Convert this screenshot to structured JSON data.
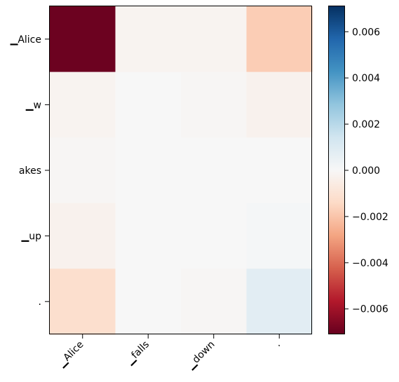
{
  "chart_data": {
    "type": "heatmap",
    "x_tick_labels": [
      "▁Alice",
      "▁falls",
      "▁down",
      "."
    ],
    "y_tick_labels": [
      "▁Alice",
      "▁w",
      "akes",
      "▁up",
      "."
    ],
    "values": [
      [
        -0.007,
        -0.0002,
        -0.0002,
        -0.0018
      ],
      [
        -0.0002,
        0.0,
        -0.0001,
        -0.0003
      ],
      [
        -0.0001,
        0.0,
        0.0,
        0.0
      ],
      [
        -0.0003,
        0.0,
        0.0,
        0.0001
      ],
      [
        -0.0012,
        0.0,
        -0.0001,
        0.0008
      ]
    ],
    "colormap": "RdBu",
    "vmin": -0.0071,
    "vmax": 0.0071,
    "colorbar_ticks": [
      0.006,
      0.004,
      0.002,
      0.0,
      -0.002,
      -0.004,
      -0.006
    ],
    "colorbar_tick_labels": [
      "0.006",
      "0.004",
      "0.002",
      "0.000",
      "−0.002",
      "−0.004",
      "−0.006"
    ],
    "grid": false,
    "colorbar_position": "right"
  }
}
